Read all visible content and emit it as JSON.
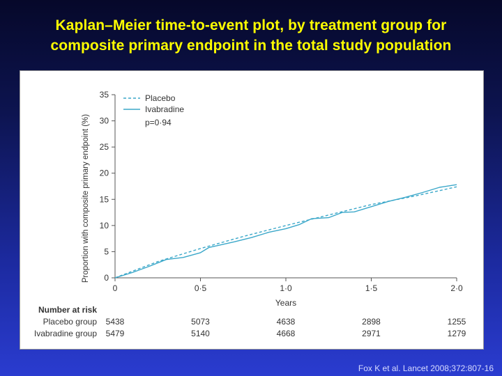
{
  "slide": {
    "title_line1": "Kaplan–Meier time-to-event plot, by treatment group for",
    "title_line2": "composite primary endpoint in the total study population",
    "citation": "Fox K et al. Lancet 2008;372:807-16",
    "title_color": "#ffff00"
  },
  "chart_data": {
    "type": "line",
    "title": "",
    "xlabel": "Years",
    "ylabel": "Proportion with composite primary endpoint (%)",
    "xlim": [
      0,
      2.0
    ],
    "ylim": [
      0,
      35
    ],
    "x_ticks": [
      0,
      0.5,
      1.0,
      1.5,
      2.0
    ],
    "x_tick_labels": [
      "0",
      "0·5",
      "1·0",
      "1·5",
      "2·0"
    ],
    "y_ticks": [
      0,
      5,
      10,
      15,
      20,
      25,
      30,
      35
    ],
    "y_tick_labels": [
      "0",
      "5",
      "10",
      "15",
      "20",
      "25",
      "30",
      "35"
    ],
    "grid": false,
    "legend_position": "top-left",
    "annotation": "p=0·94",
    "line_color": "#3aa7c9",
    "series": [
      {
        "name": "Placebo",
        "style": "dashed",
        "x": [
          0,
          0.25,
          0.5,
          0.75,
          1.0,
          1.25,
          1.5,
          1.75,
          2.0
        ],
        "y": [
          0,
          3.1,
          5.6,
          7.9,
          10.0,
          12.0,
          14.0,
          15.6,
          17.4
        ]
      },
      {
        "name": "Ivabradine",
        "style": "solid",
        "x": [
          0,
          0.1,
          0.2,
          0.3,
          0.4,
          0.5,
          0.55,
          0.7,
          0.8,
          0.9,
          1.0,
          1.08,
          1.15,
          1.25,
          1.33,
          1.4,
          1.5,
          1.6,
          1.7,
          1.8,
          1.9,
          2.0
        ],
        "y": [
          0,
          1.0,
          2.2,
          3.5,
          3.9,
          4.8,
          5.8,
          6.9,
          7.7,
          8.7,
          9.4,
          10.2,
          11.3,
          11.5,
          12.5,
          12.6,
          13.6,
          14.6,
          15.4,
          16.3,
          17.3,
          17.8
        ]
      }
    ],
    "risk_table": {
      "header": "Number at risk",
      "rows": [
        {
          "label": "Placebo group",
          "values": [
            "5438",
            "5073",
            "4638",
            "2898",
            "1255"
          ]
        },
        {
          "label": "Ivabradine group",
          "values": [
            "5479",
            "5140",
            "4668",
            "2971",
            "1279"
          ]
        }
      ]
    }
  }
}
